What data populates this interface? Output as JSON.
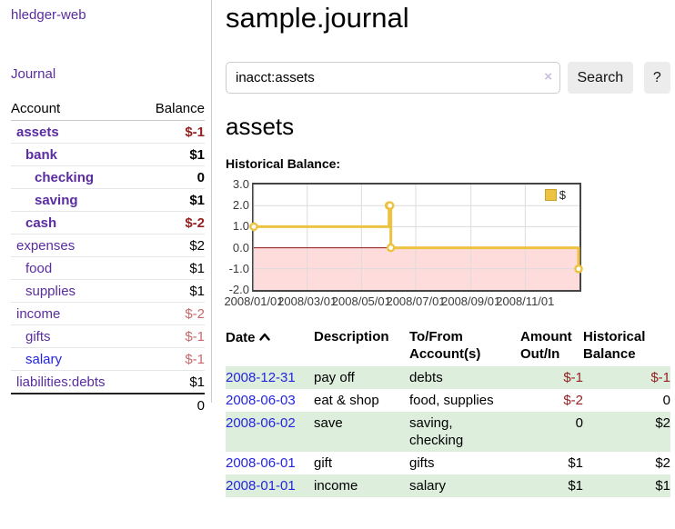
{
  "brand": "hledger-web",
  "sidebar": {
    "journal_link": "Journal",
    "columns": {
      "account": "Account",
      "balance": "Balance"
    },
    "accounts": [
      {
        "name": "assets",
        "balance": "$-1"
      },
      {
        "name": "bank",
        "balance": "$1"
      },
      {
        "name": "checking",
        "balance": "0"
      },
      {
        "name": "saving",
        "balance": "$1"
      },
      {
        "name": "cash",
        "balance": "$-2"
      },
      {
        "name": "expenses",
        "balance": "$2"
      },
      {
        "name": "food",
        "balance": "$1"
      },
      {
        "name": "supplies",
        "balance": "$1"
      },
      {
        "name": "income",
        "balance": "$-2"
      },
      {
        "name": "gifts",
        "balance": "$-1"
      },
      {
        "name": "salary",
        "balance": "$-1"
      },
      {
        "name": "liabilities:debts",
        "balance": "$1"
      }
    ],
    "total": "0"
  },
  "header": {
    "title": "sample.journal"
  },
  "search": {
    "query": "inacct:assets",
    "clear_label": "×",
    "button_label": "Search",
    "help_label": "?"
  },
  "account_page": {
    "heading": "assets",
    "chart_title": "Historical Balance:"
  },
  "chart_data": {
    "type": "line",
    "title": "Historical Balance",
    "step": true,
    "xlim": [
      "2008-01-01",
      "2009-01-01"
    ],
    "ylim": [
      -2,
      3
    ],
    "grid": true,
    "legend_position": "top-right",
    "series": [
      {
        "name": "$",
        "color": "#edc240",
        "points": [
          {
            "date": "2008-01-01",
            "value": 1
          },
          {
            "date": "2008-06-01",
            "value": 2
          },
          {
            "date": "2008-06-02",
            "value": 2
          },
          {
            "date": "2008-06-03",
            "value": 0
          },
          {
            "date": "2008-12-31",
            "value": -1
          }
        ]
      }
    ],
    "y_ticks": [
      {
        "label": "3.0",
        "value": 3
      },
      {
        "label": "2.0",
        "value": 2
      },
      {
        "label": "1.0",
        "value": 1
      },
      {
        "label": "0.0",
        "value": 0
      },
      {
        "label": "-1.0",
        "value": -1
      },
      {
        "label": "-2.0",
        "value": -2
      }
    ],
    "x_ticks": [
      {
        "label": "2008/01/01",
        "date": "2008-01-01"
      },
      {
        "label": "2008/03/01",
        "date": "2008-03-01"
      },
      {
        "label": "2008/05/01",
        "date": "2008-05-01"
      },
      {
        "label": "2008/07/01",
        "date": "2008-07-01"
      },
      {
        "label": "2008/09/01",
        "date": "2008-09-01"
      },
      {
        "label": "2008/11/01",
        "date": "2008-11-01"
      }
    ],
    "negative_region_color": "#ffdcdc",
    "zero_line_color": "#8b1414",
    "grid_color": "#dcdcdc"
  },
  "table": {
    "headers": {
      "date": "Date",
      "description": "Description",
      "account": [
        "To/From",
        "Account(s)"
      ],
      "amount": [
        "Amount",
        "Out/In"
      ],
      "balance": [
        "Historical",
        "Balance"
      ]
    },
    "rows": [
      {
        "date": "2008-12-31",
        "description": "pay off",
        "accounts": [
          "debts"
        ],
        "amount": "$-1",
        "balance": "$-1"
      },
      {
        "date": "2008-06-03",
        "description": "eat & shop",
        "accounts": [
          "food, supplies"
        ],
        "amount": "$-2",
        "balance": "0"
      },
      {
        "date": "2008-06-02",
        "description": "save",
        "accounts": [
          "saving,",
          "checking"
        ],
        "amount": "0",
        "balance": "$2"
      },
      {
        "date": "2008-06-01",
        "description": "gift",
        "accounts": [
          "gifts"
        ],
        "amount": "$1",
        "balance": "$2"
      },
      {
        "date": "2008-01-01",
        "description": "income",
        "accounts": [
          "salary"
        ],
        "amount": "$1",
        "balance": "$1"
      }
    ]
  }
}
